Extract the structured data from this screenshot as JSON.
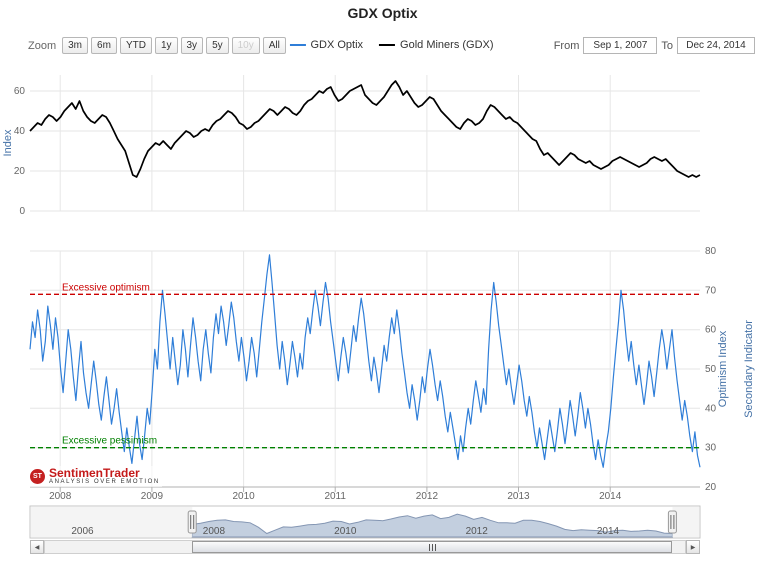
{
  "title": "GDX Optix",
  "zoom": {
    "label": "Zoom",
    "buttons": [
      {
        "label": "3m",
        "enabled": true
      },
      {
        "label": "6m",
        "enabled": true
      },
      {
        "label": "YTD",
        "enabled": true
      },
      {
        "label": "1y",
        "enabled": true
      },
      {
        "label": "3y",
        "enabled": true
      },
      {
        "label": "5y",
        "enabled": true
      },
      {
        "label": "10y",
        "enabled": false
      },
      {
        "label": "All",
        "enabled": true
      }
    ]
  },
  "legend": {
    "items": [
      {
        "label": "GDX Optix",
        "color": "#2f7ed8"
      },
      {
        "label": "Gold Miners (GDX)",
        "color": "#000000"
      }
    ]
  },
  "range": {
    "from_label": "From",
    "from_value": "Sep 1, 2007",
    "to_label": "To",
    "to_value": "Dec 24, 2014"
  },
  "xaxis": {
    "years": [
      2008,
      2009,
      2010,
      2011,
      2012,
      2013,
      2014
    ],
    "year_labels": [
      "2008",
      "2009",
      "2010",
      "2011",
      "2012",
      "2013",
      "2014"
    ]
  },
  "chart_data": [
    {
      "type": "line",
      "name": "Gold Miners (GDX)",
      "panel": "top",
      "color": "#000000",
      "ylabel": "Index",
      "x_range": [
        2007.67,
        2014.98
      ],
      "ylim": [
        0,
        68
      ],
      "yticks": [
        0,
        20,
        40,
        60
      ],
      "grid": true,
      "values": [
        40,
        42,
        44,
        43,
        46,
        48,
        47,
        45,
        47,
        50,
        52,
        54,
        51,
        55,
        50,
        47,
        45,
        44,
        46,
        48,
        47,
        44,
        40,
        36,
        33,
        30,
        24,
        18,
        17,
        21,
        26,
        30,
        32,
        34,
        33,
        35,
        33,
        31,
        34,
        36,
        38,
        40,
        39,
        37,
        38,
        40,
        41,
        40,
        43,
        45,
        46,
        48,
        50,
        49,
        47,
        44,
        43,
        41,
        42,
        44,
        45,
        47,
        49,
        51,
        50,
        48,
        50,
        52,
        51,
        49,
        48,
        50,
        53,
        55,
        56,
        58,
        60,
        59,
        61,
        62,
        58,
        55,
        56,
        58,
        60,
        61,
        62,
        63,
        58,
        56,
        54,
        53,
        55,
        57,
        60,
        63,
        65,
        62,
        58,
        60,
        57,
        54,
        52,
        53,
        55,
        57,
        56,
        53,
        50,
        48,
        46,
        44,
        42,
        41,
        44,
        46,
        45,
        43,
        44,
        46,
        50,
        53,
        52,
        50,
        48,
        46,
        47,
        45,
        44,
        42,
        40,
        38,
        36,
        35,
        31,
        28,
        29,
        27,
        25,
        23,
        25,
        27,
        29,
        28,
        26,
        25,
        24,
        25,
        23,
        22,
        21,
        22,
        23,
        25,
        26,
        27,
        26,
        25,
        24,
        23,
        22,
        23,
        24,
        26,
        27,
        26,
        25,
        26,
        24,
        22,
        20,
        19,
        18,
        17,
        18,
        17,
        18
      ]
    },
    {
      "type": "line",
      "name": "GDX Optix",
      "panel": "bottom",
      "color": "#2f7ed8",
      "ylabel_right": "Optimism Index",
      "ylabel_far_right": "Secondary Indicator",
      "x_range": [
        2007.67,
        2014.98
      ],
      "ylim": [
        20,
        80
      ],
      "yticks": [
        20,
        30,
        40,
        50,
        60,
        70,
        80
      ],
      "grid": true,
      "thresholds": [
        {
          "value": 69,
          "label": "Excessive optimism",
          "color": "#cc0000"
        },
        {
          "value": 30,
          "label": "Excessive pessimism",
          "color": "#008000"
        }
      ],
      "values": [
        55,
        62,
        58,
        65,
        60,
        52,
        57,
        66,
        61,
        55,
        63,
        58,
        50,
        44,
        52,
        60,
        55,
        48,
        42,
        50,
        57,
        49,
        44,
        40,
        46,
        52,
        47,
        41,
        37,
        43,
        48,
        42,
        36,
        40,
        45,
        39,
        34,
        29,
        35,
        30,
        26,
        32,
        38,
        31,
        27,
        33,
        40,
        36,
        45,
        55,
        50,
        62,
        70,
        64,
        57,
        50,
        58,
        52,
        46,
        51,
        60,
        55,
        48,
        56,
        63,
        58,
        52,
        47,
        55,
        60,
        54,
        49,
        58,
        64,
        59,
        66,
        62,
        56,
        61,
        67,
        63,
        57,
        52,
        58,
        53,
        47,
        52,
        58,
        54,
        48,
        55,
        62,
        68,
        74,
        79,
        72,
        64,
        56,
        50,
        57,
        52,
        46,
        51,
        57,
        53,
        48,
        54,
        50,
        58,
        63,
        59,
        65,
        70,
        66,
        61,
        67,
        72,
        68,
        62,
        57,
        52,
        47,
        53,
        58,
        54,
        49,
        55,
        61,
        57,
        63,
        68,
        64,
        58,
        52,
        47,
        53,
        49,
        44,
        50,
        56,
        52,
        58,
        63,
        59,
        65,
        60,
        54,
        49,
        44,
        40,
        46,
        42,
        37,
        42,
        48,
        44,
        50,
        55,
        51,
        46,
        42,
        47,
        43,
        38,
        34,
        39,
        35,
        31,
        27,
        33,
        29,
        35,
        40,
        36,
        42,
        47,
        43,
        39,
        45,
        41,
        55,
        65,
        72,
        67,
        61,
        56,
        51,
        46,
        50,
        45,
        41,
        46,
        51,
        47,
        42,
        38,
        43,
        39,
        34,
        30,
        35,
        31,
        27,
        32,
        37,
        33,
        29,
        34,
        40,
        36,
        31,
        36,
        42,
        38,
        33,
        38,
        44,
        40,
        35,
        40,
        36,
        31,
        27,
        32,
        28,
        25,
        30,
        34,
        40,
        48,
        55,
        62,
        70,
        65,
        58,
        52,
        57,
        51,
        46,
        51,
        46,
        41,
        46,
        52,
        48,
        43,
        49,
        55,
        60,
        56,
        50,
        55,
        60,
        53,
        47,
        42,
        37,
        42,
        38,
        33,
        29,
        34,
        28,
        25
      ]
    }
  ],
  "branding": {
    "name": "SentimenTrader",
    "tagline": "ANALYSIS OVER EMOTION",
    "icon": "st-logo"
  },
  "navigator": {
    "x_range": [
      2005.2,
      2015.4
    ],
    "selection": [
      2007.67,
      2014.98
    ],
    "labels": [
      {
        "text": "2006",
        "year": 2006
      },
      {
        "text": "2008",
        "year": 2008
      },
      {
        "text": "2010",
        "year": 2010
      },
      {
        "text": "2012",
        "year": 2012
      },
      {
        "text": "2014",
        "year": 2014
      }
    ]
  },
  "scrollbar": {
    "left_arrow": "◀",
    "right_arrow": "▶"
  }
}
